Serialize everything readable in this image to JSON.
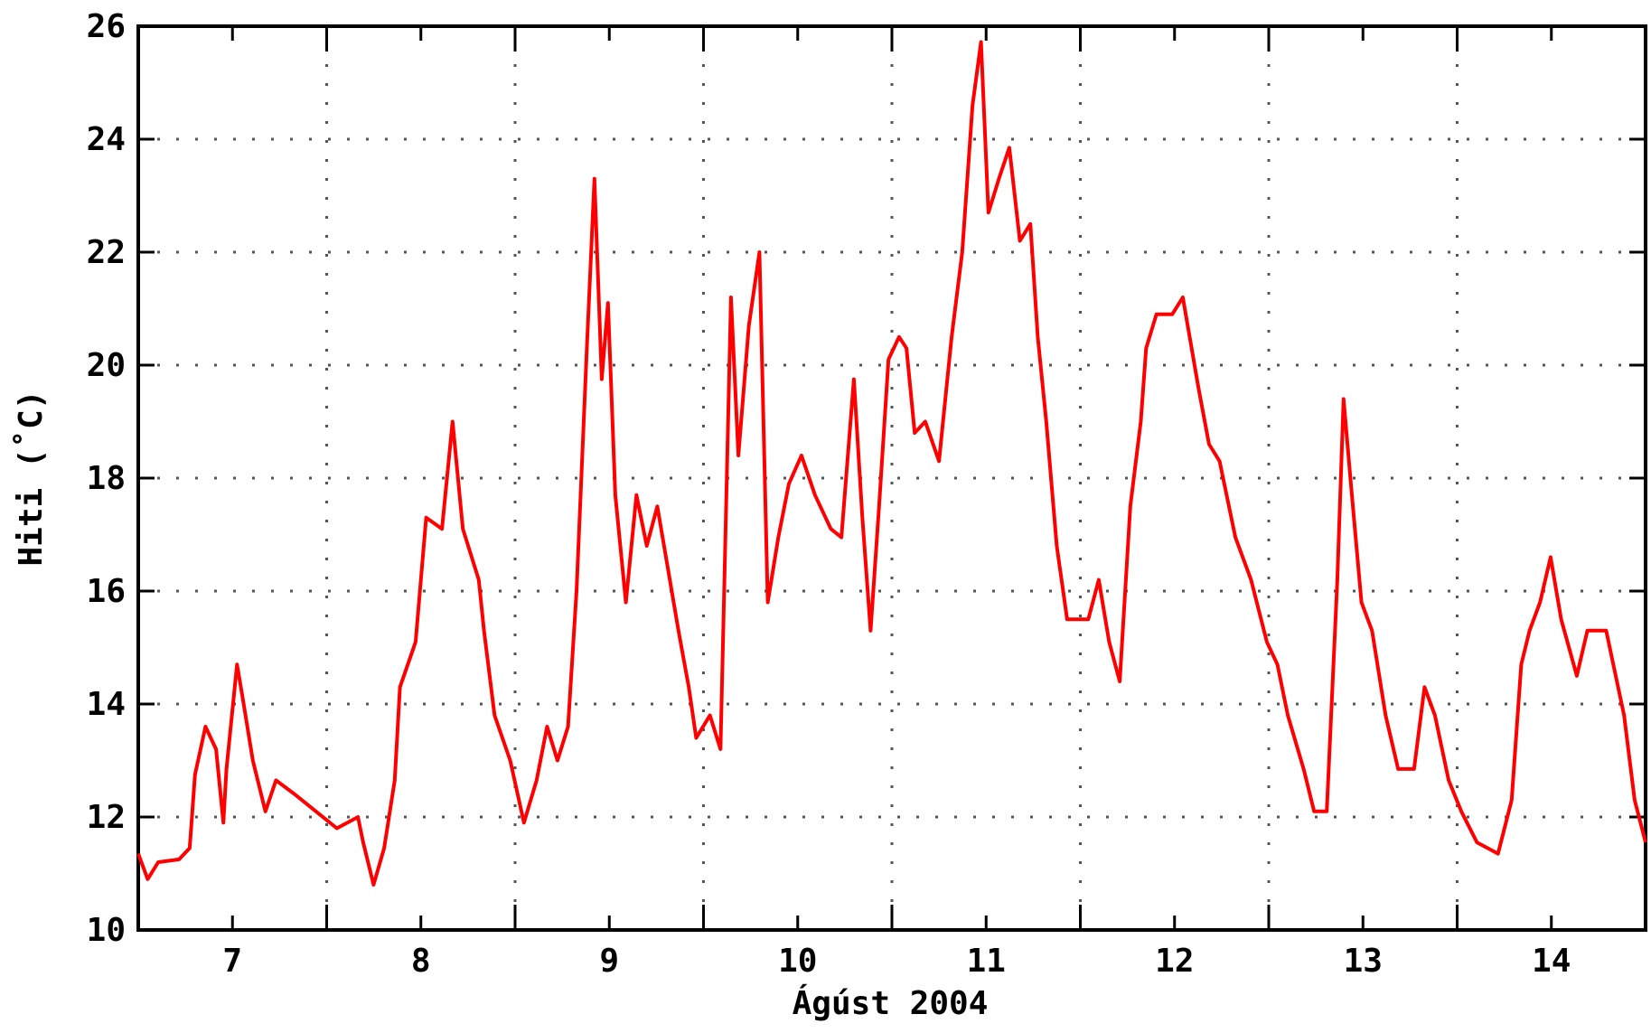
{
  "chart_data": {
    "type": "line",
    "y_label": "Hiti (˚C)",
    "x_label": "Ágúst 2004",
    "xlim": [
      7,
      15
    ],
    "xticks": [
      {
        "value": 7.5,
        "label": "7"
      },
      {
        "value": 8.5,
        "label": "8"
      },
      {
        "value": 9.5,
        "label": "9"
      },
      {
        "value": 10.5,
        "label": "10"
      },
      {
        "value": 11.5,
        "label": "11"
      },
      {
        "value": 12.5,
        "label": "12"
      },
      {
        "value": 13.5,
        "label": "13"
      },
      {
        "value": 14.5,
        "label": "14"
      }
    ],
    "xgrid": [
      8,
      9,
      10,
      11,
      12,
      13,
      14
    ],
    "ylim": [
      10,
      26
    ],
    "yticks": [
      10,
      12,
      14,
      16,
      18,
      20,
      22,
      24,
      26
    ],
    "grid": true,
    "series": [
      {
        "color": "#ff0000",
        "x": [
          7.0,
          7.05,
          7.106,
          7.217,
          7.273,
          7.301,
          7.357,
          7.413,
          7.452,
          7.468,
          7.524,
          7.552,
          7.608,
          7.675,
          7.731,
          7.831,
          7.943,
          8.054,
          8.166,
          8.194,
          8.249,
          8.305,
          8.361,
          8.389,
          8.472,
          8.528,
          8.612,
          8.668,
          8.723,
          8.807,
          8.835,
          8.891,
          8.974,
          9.047,
          9.114,
          9.17,
          9.225,
          9.281,
          9.326,
          9.381,
          9.421,
          9.46,
          9.493,
          9.532,
          9.588,
          9.644,
          9.699,
          9.755,
          9.811,
          9.867,
          9.922,
          9.961,
          10.034,
          10.09,
          10.146,
          10.185,
          10.241,
          10.297,
          10.341,
          10.397,
          10.453,
          10.52,
          10.592,
          10.676,
          10.732,
          10.798,
          10.843,
          10.887,
          10.932,
          10.982,
          11.038,
          11.077,
          11.121,
          11.177,
          11.25,
          11.317,
          11.373,
          11.428,
          11.473,
          11.512,
          11.568,
          11.623,
          11.679,
          11.735,
          11.774,
          11.819,
          11.875,
          11.93,
          12.042,
          12.098,
          12.153,
          12.209,
          12.265,
          12.321,
          12.349,
          12.404,
          12.488,
          12.544,
          12.627,
          12.683,
          12.739,
          12.823,
          12.906,
          12.99,
          13.046,
          13.101,
          13.185,
          13.241,
          13.308,
          13.364,
          13.397,
          13.436,
          13.492,
          13.548,
          13.62,
          13.687,
          13.771,
          13.827,
          13.882,
          13.955,
          14.022,
          14.105,
          14.217,
          14.289,
          14.34,
          14.384,
          14.44,
          14.496,
          14.552,
          14.635,
          14.691,
          14.791,
          14.886,
          14.942,
          15.0
        ],
        "values": [
          11.35,
          10.9,
          11.2,
          11.25,
          11.45,
          12.75,
          13.6,
          13.2,
          11.9,
          12.85,
          14.7,
          14.15,
          13.0,
          12.1,
          12.65,
          12.4,
          12.1,
          11.8,
          12.0,
          11.55,
          10.8,
          11.45,
          12.65,
          14.3,
          15.1,
          17.3,
          17.1,
          19.0,
          17.1,
          16.2,
          15.3,
          13.8,
          13.0,
          11.9,
          12.65,
          13.6,
          13.0,
          13.6,
          16.0,
          20.3,
          23.3,
          19.75,
          21.1,
          17.7,
          15.8,
          17.7,
          16.8,
          17.5,
          16.4,
          15.3,
          14.3,
          13.4,
          13.8,
          13.2,
          21.2,
          18.4,
          20.7,
          22.0,
          15.8,
          16.95,
          17.9,
          18.4,
          17.7,
          17.1,
          16.95,
          19.75,
          17.3,
          15.3,
          17.5,
          20.1,
          20.5,
          20.3,
          18.8,
          19.0,
          18.3,
          20.5,
          22.0,
          24.6,
          25.72,
          22.7,
          23.3,
          23.85,
          22.2,
          22.5,
          20.5,
          19.0,
          16.8,
          15.5,
          15.5,
          16.2,
          15.1,
          14.4,
          17.5,
          19.0,
          20.3,
          20.9,
          20.9,
          21.2,
          19.6,
          18.6,
          18.3,
          16.95,
          16.2,
          15.1,
          14.7,
          13.8,
          12.85,
          12.1,
          12.1,
          16.2,
          19.4,
          17.9,
          15.8,
          15.3,
          13.8,
          12.85,
          12.85,
          14.3,
          13.8,
          12.65,
          12.1,
          11.55,
          11.35,
          12.3,
          14.7,
          15.3,
          15.8,
          16.6,
          15.5,
          14.5,
          15.3,
          15.3,
          13.8,
          12.3,
          11.55
        ]
      }
    ]
  }
}
